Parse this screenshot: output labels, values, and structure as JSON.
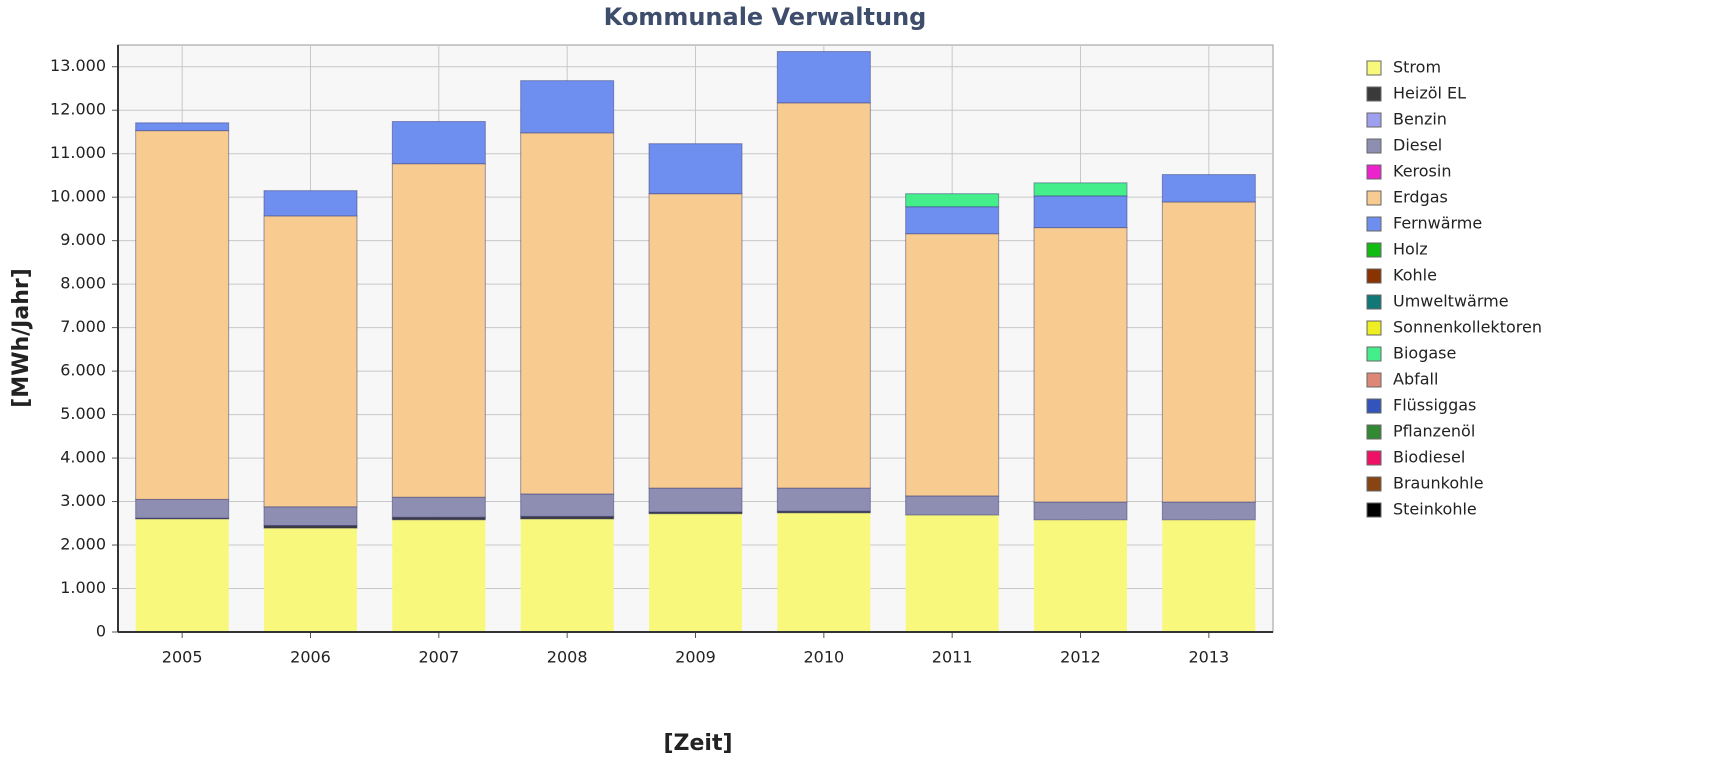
{
  "chart_data": {
    "type": "stacked_bar",
    "title": "Kommunale Verwaltung",
    "x_label": "[Zeit]",
    "y_label": "[MWh/Jahr]",
    "categories": [
      "2005",
      "2006",
      "2007",
      "2008",
      "2009",
      "2010",
      "2011",
      "2012",
      "2013"
    ],
    "ylim": [
      0,
      13500
    ],
    "yticks": [
      0,
      {
        "value": 1000,
        "label": "1.000"
      },
      {
        "value": 2000,
        "label": "2.000"
      },
      {
        "value": 3000,
        "label": "3.000"
      },
      {
        "value": 4000,
        "label": "4.000"
      },
      {
        "value": 5000,
        "label": "5.000"
      },
      {
        "value": 6000,
        "label": "6.000"
      },
      {
        "value": 7000,
        "label": "7.000"
      },
      {
        "value": 8000,
        "label": "8.000"
      },
      {
        "value": 9000,
        "label": "9.000"
      },
      {
        "value": 10000,
        "label": "10.000"
      },
      {
        "value": 11000,
        "label": "11.000"
      },
      {
        "value": 12000,
        "label": "12.000"
      },
      {
        "value": 13000,
        "label": "13.000"
      }
    ],
    "grid": true,
    "series": [
      {
        "name": "Strom",
        "color": "#f8f87c",
        "values": [
          2600,
          2390,
          2580,
          2600,
          2720,
          2740,
          2690,
          2580,
          2580
        ]
      },
      {
        "name": "Heizöl EL",
        "color": "#3a3a3a",
        "values": [
          20,
          60,
          60,
          60,
          40,
          40,
          0,
          0,
          0
        ]
      },
      {
        "name": "Benzin",
        "color": "#a0a0f0",
        "values": [
          0,
          0,
          0,
          0,
          0,
          0,
          0,
          0,
          0
        ]
      },
      {
        "name": "Diesel",
        "color": "#8e8eb2",
        "values": [
          430,
          430,
          460,
          515,
          550,
          530,
          440,
          410,
          410
        ]
      },
      {
        "name": "Kerosin",
        "color": "#ee22cc",
        "values": [
          0,
          0,
          0,
          0,
          0,
          0,
          0,
          0,
          0
        ]
      },
      {
        "name": "Erdgas",
        "color": "#f8cc90",
        "values": [
          8480,
          6690,
          7670,
          8305,
          6770,
          8860,
          6030,
          6310,
          6900
        ]
      },
      {
        "name": "Fernwärme",
        "color": "#6f8ff0",
        "values": [
          180,
          580,
          970,
          1200,
          1150,
          1180,
          620,
          730,
          630
        ]
      },
      {
        "name": "Holz",
        "color": "#11bb11",
        "values": [
          0,
          0,
          0,
          0,
          0,
          0,
          0,
          0,
          0
        ]
      },
      {
        "name": "Kohle",
        "color": "#883300",
        "values": [
          0,
          0,
          0,
          0,
          0,
          0,
          0,
          0,
          0
        ]
      },
      {
        "name": "Umweltwärme",
        "color": "#117777",
        "values": [
          0,
          0,
          0,
          0,
          0,
          0,
          0,
          0,
          0
        ]
      },
      {
        "name": "Sonnenkollektoren",
        "color": "#eeee22",
        "values": [
          0,
          0,
          0,
          0,
          0,
          0,
          0,
          0,
          0
        ]
      },
      {
        "name": "Biogase",
        "color": "#44ee8a",
        "values": [
          0,
          0,
          0,
          0,
          0,
          0,
          300,
          300,
          0
        ]
      },
      {
        "name": "Abfall",
        "color": "#dd8877",
        "values": [
          0,
          0,
          0,
          0,
          0,
          0,
          0,
          0,
          0
        ]
      },
      {
        "name": "Flüssiggas",
        "color": "#3355bb",
        "values": [
          0,
          0,
          0,
          0,
          0,
          0,
          0,
          0,
          0
        ]
      },
      {
        "name": "Pflanzenöl",
        "color": "#338833",
        "values": [
          0,
          0,
          0,
          0,
          0,
          0,
          0,
          0,
          0
        ]
      },
      {
        "name": "Biodiesel",
        "color": "#ee1166",
        "values": [
          0,
          0,
          0,
          0,
          0,
          0,
          0,
          0,
          0
        ]
      },
      {
        "name": "Braunkohle",
        "color": "#884411",
        "values": [
          0,
          0,
          0,
          0,
          0,
          0,
          0,
          0,
          0
        ]
      },
      {
        "name": "Steinkohle",
        "color": "#000000",
        "values": [
          0,
          0,
          0,
          0,
          0,
          0,
          0,
          0,
          0
        ]
      }
    ]
  }
}
